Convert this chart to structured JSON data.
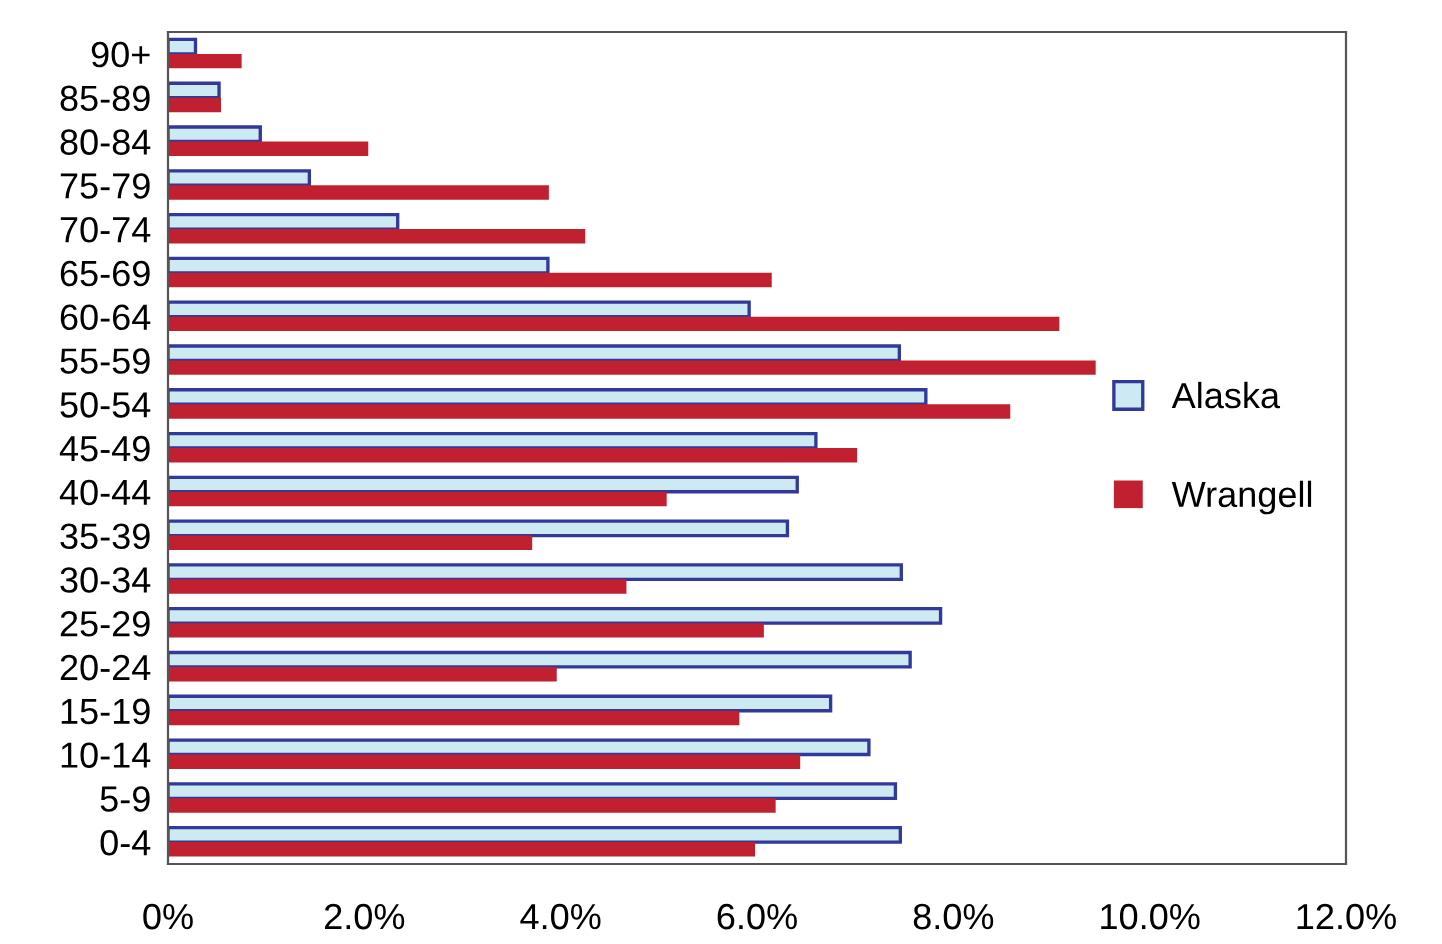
{
  "chart_data": {
    "type": "bar",
    "orientation": "horizontal",
    "categories": [
      "90+",
      "85-89",
      "80-84",
      "75-79",
      "70-74",
      "65-69",
      "60-64",
      "55-59",
      "50-54",
      "45-49",
      "40-44",
      "35-39",
      "30-34",
      "25-29",
      "20-24",
      "15-19",
      "10-14",
      "5-9",
      "0-4"
    ],
    "series": [
      {
        "name": "Alaska",
        "color": "#cde9f2",
        "values": [
          0.28,
          0.52,
          0.94,
          1.44,
          2.34,
          3.87,
          5.92,
          7.45,
          7.72,
          6.6,
          6.41,
          6.31,
          7.47,
          7.87,
          7.56,
          6.75,
          7.14,
          7.41,
          7.46
        ]
      },
      {
        "name": "Wrangell",
        "color": "#c0202f",
        "values": [
          0.75,
          0.54,
          2.04,
          3.88,
          4.25,
          6.15,
          9.08,
          9.45,
          8.58,
          7.02,
          5.08,
          3.71,
          4.67,
          6.07,
          3.96,
          5.82,
          6.44,
          6.19,
          5.98
        ]
      }
    ],
    "xlim": [
      0,
      12
    ],
    "xticks": [
      {
        "value": 0,
        "label": "0%"
      },
      {
        "value": 2,
        "label": "2.0%"
      },
      {
        "value": 4,
        "label": "4.0%"
      },
      {
        "value": 6,
        "label": "6.0%"
      },
      {
        "value": 8,
        "label": "8.0%"
      },
      {
        "value": 10,
        "label": "10.0%"
      },
      {
        "value": 12,
        "label": "12.0%"
      }
    ],
    "grid": false,
    "legend": "right"
  }
}
